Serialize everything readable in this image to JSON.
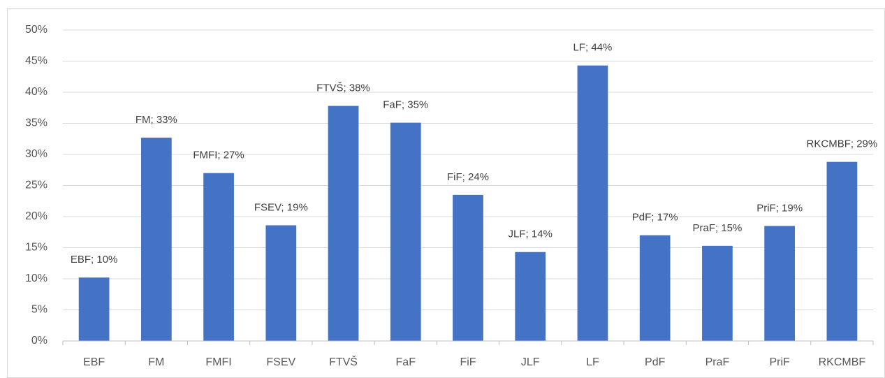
{
  "chart_data": {
    "type": "bar",
    "categories": [
      "EBF",
      "FM",
      "FMFI",
      "FSEV",
      "FTVŠ",
      "FaF",
      "FiF",
      "JLF",
      "LF",
      "PdF",
      "PraF",
      "PriF",
      "RKCMBF"
    ],
    "values": [
      10.2,
      32.7,
      27.0,
      18.6,
      37.8,
      35.1,
      23.5,
      14.3,
      44.3,
      17.0,
      15.3,
      18.5,
      28.8
    ],
    "value_labels": [
      "EBF; 10%",
      "FM; 33%",
      "FMFI; 27%",
      "FSEV; 19%",
      "FTVŠ; 38%",
      "FaF; 35%",
      "FiF; 24%",
      "JLF; 14%",
      "LF; 44%",
      "PdF; 17%",
      "PraF; 15%",
      "PriF; 19%",
      "RKCMBF; 29%"
    ],
    "color": "#4472c4",
    "ylim": [
      0,
      50
    ],
    "yticks": [
      {
        "value": 0,
        "label": "0%"
      },
      {
        "value": 5,
        "label": "5%"
      },
      {
        "value": 10,
        "label": "10%"
      },
      {
        "value": 15,
        "label": "15%"
      },
      {
        "value": 20,
        "label": "20%"
      },
      {
        "value": 25,
        "label": "25%"
      },
      {
        "value": 30,
        "label": "30%"
      },
      {
        "value": 35,
        "label": "35%"
      },
      {
        "value": 40,
        "label": "40%"
      },
      {
        "value": 45,
        "label": "45%"
      },
      {
        "value": 50,
        "label": "50%"
      }
    ],
    "grid": true
  }
}
